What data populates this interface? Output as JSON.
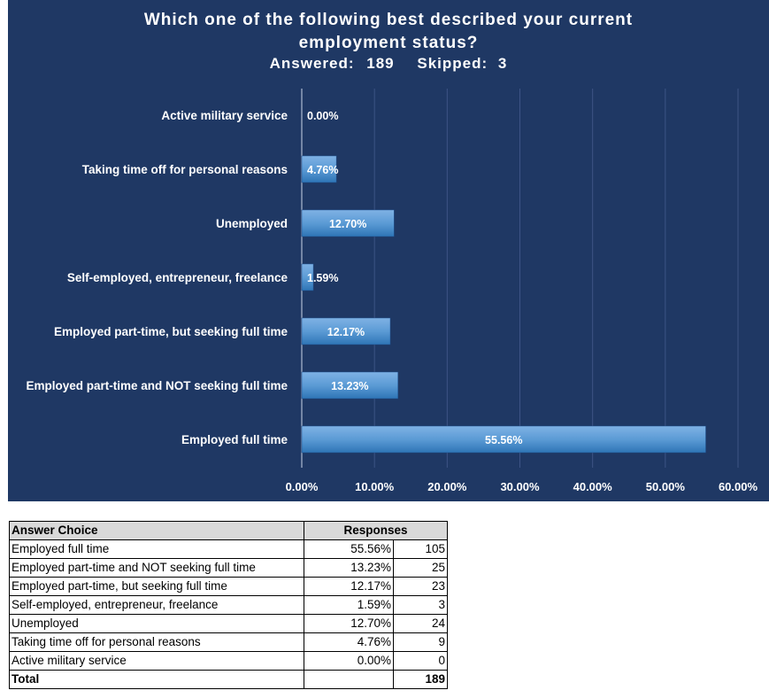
{
  "chart_data": {
    "type": "bar",
    "orientation": "horizontal",
    "title": "Which one of the following best described your current employment status?",
    "title_lines": [
      "Which one of the following best described your current",
      "employment status?"
    ],
    "subtitle": {
      "answered_label": "Answered:",
      "answered_value": "189",
      "skipped_label": "Skipped:",
      "skipped_value": "3"
    },
    "categories": [
      "Active military service",
      "Taking time off for personal reasons",
      "Unemployed",
      "Self-employed, entrepreneur, freelance",
      "Employed part-time, but seeking full time",
      "Employed part-time and NOT seeking full time",
      "Employed full time"
    ],
    "values": [
      0.0,
      4.76,
      12.7,
      1.59,
      12.17,
      13.23,
      55.56
    ],
    "data_labels": [
      "0.00%",
      "4.76%",
      "12.70%",
      "1.59%",
      "12.17%",
      "13.23%",
      "55.56%"
    ],
    "xlim": [
      0,
      60
    ],
    "x_ticks": [
      0,
      10,
      20,
      30,
      40,
      50,
      60
    ],
    "x_tick_labels": [
      "0.00%",
      "10.00%",
      "20.00%",
      "30.00%",
      "40.00%",
      "50.00%",
      "60.00%"
    ],
    "xlabel": "",
    "ylabel": "",
    "grid": true,
    "legend": "none",
    "colors": {
      "background": "#1f3864",
      "bar": "#5b9bd5",
      "bar_dark": "#2e75b6",
      "gridline": "#3d5485",
      "text": "#ffffff"
    }
  },
  "table": {
    "header": {
      "choice": "Answer Choice",
      "responses": "Responses"
    },
    "rows": [
      {
        "choice": "Employed full time",
        "pct": "55.56%",
        "count": "105"
      },
      {
        "choice": "Employed part-time and NOT seeking full time",
        "pct": "13.23%",
        "count": "25"
      },
      {
        "choice": "Employed part-time, but seeking full time",
        "pct": "12.17%",
        "count": "23"
      },
      {
        "choice": "Self-employed, entrepreneur, freelance",
        "pct": "1.59%",
        "count": "3"
      },
      {
        "choice": "Unemployed",
        "pct": "12.70%",
        "count": "24"
      },
      {
        "choice": "Taking time off for personal reasons",
        "pct": "4.76%",
        "count": "9"
      },
      {
        "choice": "Active military service",
        "pct": "0.00%",
        "count": "0"
      }
    ],
    "total": {
      "label": "Total",
      "count": "189"
    }
  }
}
